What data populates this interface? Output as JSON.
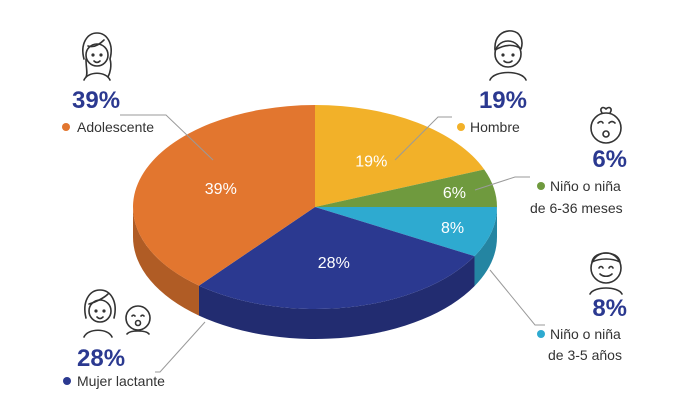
{
  "chart_data": {
    "type": "pie",
    "title": "",
    "slices": [
      {
        "label": "Hombre",
        "value": 19,
        "display": "19%",
        "color": "#f2b129"
      },
      {
        "label": "Niño o niña de 6-36 meses",
        "value": 6,
        "display": "6%",
        "color": "#6f9a3e"
      },
      {
        "label": "Niño o niña de 3-5 años",
        "value": 8,
        "display": "8%",
        "color": "#2eaad0"
      },
      {
        "label": "Mujer lactante",
        "value": 28,
        "display": "28%",
        "color": "#2b3990"
      },
      {
        "label": "Adolescente",
        "value": 39,
        "display": "39%",
        "color": "#e2762f"
      }
    ]
  },
  "callouts": {
    "hombre": {
      "pct": "19%",
      "label": "Hombre",
      "icon": "man-icon"
    },
    "nino6": {
      "pct": "6%",
      "line1": "Niño o niña",
      "line2": "de 6-36 meses",
      "icon": "baby-icon"
    },
    "nino3": {
      "pct": "8%",
      "line1": "Niño o niña",
      "line2": "de 3-5 años",
      "icon": "child-icon"
    },
    "mujer": {
      "pct": "28%",
      "label": "Mujer lactante",
      "icon": "mother-baby-icon"
    },
    "adolescente": {
      "pct": "39%",
      "label": "Adolescente",
      "icon": "teen-girl-icon"
    }
  }
}
